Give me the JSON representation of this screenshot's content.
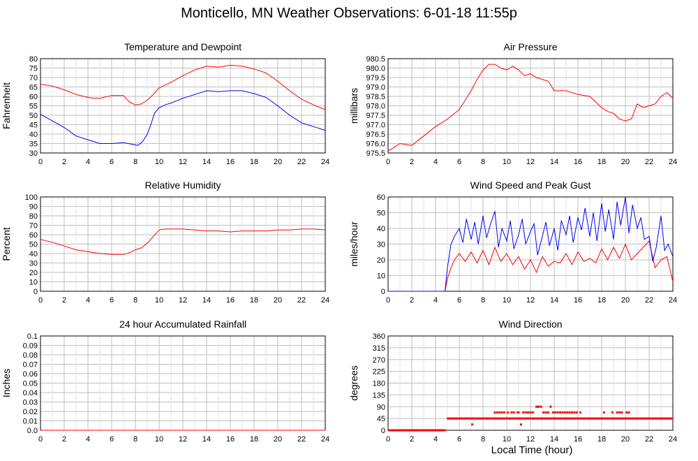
{
  "page": {
    "title": "Monticello, MN Weather Observations: 6-01-18 11:55p",
    "xlabel": "Local Time (hour)"
  },
  "colors": {
    "red": "#ff0000",
    "blue": "#0000ff",
    "grid": "#bfbfbf",
    "axis": "#000000"
  },
  "chart_data": [
    {
      "type": "line",
      "title": "Temperature and Dewpoint",
      "ylabel": "Fahrenheit",
      "xlim": [
        0,
        24
      ],
      "ylim": [
        30,
        80
      ],
      "xticks": [
        0,
        2,
        4,
        6,
        8,
        10,
        12,
        14,
        16,
        18,
        20,
        22,
        24
      ],
      "yticks": [
        30,
        35,
        40,
        45,
        50,
        55,
        60,
        65,
        70,
        75,
        80
      ],
      "ytick_labels": [
        "30",
        "35",
        "40",
        "45",
        "50",
        "55",
        "60",
        "65",
        "70",
        "75",
        "80"
      ],
      "series": [
        {
          "color": "#ff0000",
          "x": [
            0,
            1,
            2,
            3,
            4,
            4.5,
            5,
            6,
            7,
            7.5,
            8,
            8.5,
            9,
            9.5,
            10,
            10.5,
            11,
            12,
            13,
            14,
            15,
            16,
            17,
            18,
            19,
            20,
            21,
            22,
            23,
            24
          ],
          "y": [
            66.5,
            65.5,
            63.5,
            61,
            59.5,
            59,
            59,
            60.5,
            60.5,
            57,
            55.5,
            56,
            58,
            61,
            64.5,
            66,
            67.5,
            71,
            74,
            76,
            75.5,
            76.5,
            76,
            74.5,
            72.5,
            68,
            63,
            58.5,
            55.5,
            53
          ]
        },
        {
          "color": "#0000ff",
          "x": [
            0,
            1,
            2,
            3,
            4,
            5,
            6,
            7,
            7.8,
            8.2,
            8.6,
            9,
            9.3,
            9.6,
            10,
            10.5,
            11,
            12,
            13,
            14,
            15,
            16,
            17,
            18,
            19,
            20,
            21,
            22,
            23,
            24
          ],
          "y": [
            50.5,
            47,
            43.5,
            39,
            37,
            35,
            35,
            35.5,
            34.5,
            34,
            36,
            40,
            45,
            51,
            54,
            55.5,
            56.5,
            59,
            61,
            63,
            62.5,
            63,
            63,
            61.5,
            59.5,
            55,
            50,
            46,
            44,
            42
          ]
        }
      ]
    },
    {
      "type": "line",
      "title": "Air Pressure",
      "ylabel": "millibars",
      "xlim": [
        0,
        24
      ],
      "ylim": [
        975.5,
        980.5
      ],
      "xticks": [
        0,
        2,
        4,
        6,
        8,
        10,
        12,
        14,
        16,
        18,
        20,
        22,
        24
      ],
      "yticks": [
        975.5,
        976,
        976.5,
        977,
        977.5,
        978,
        978.5,
        979,
        979.5,
        980,
        980.5
      ],
      "ytick_labels": [
        "975.5",
        "976.0",
        "976.5",
        "977.0",
        "977.5",
        "978.0",
        "978.5",
        "979.0",
        "979.5",
        "980.0",
        "980.5"
      ],
      "series": [
        {
          "color": "#ff0000",
          "x": [
            0,
            0.5,
            1,
            2,
            3,
            4,
            5,
            6,
            6.5,
            7,
            7.5,
            8,
            8.5,
            9,
            9.5,
            10,
            10.5,
            11,
            11.5,
            12,
            12.5,
            13,
            13.5,
            14,
            15,
            16,
            17,
            18,
            18.5,
            19,
            19.5,
            20,
            20.5,
            21,
            21.5,
            22,
            22.5,
            23,
            23.5,
            24
          ],
          "y": [
            975.6,
            975.8,
            976,
            975.9,
            976.4,
            976.9,
            977.3,
            977.8,
            978.3,
            978.8,
            979.4,
            979.9,
            980.2,
            980.2,
            980,
            979.9,
            980.1,
            979.9,
            979.6,
            979.7,
            979.5,
            979.4,
            979.3,
            978.8,
            978.8,
            978.6,
            978.5,
            977.9,
            977.7,
            977.6,
            977.3,
            977.2,
            977.3,
            978.1,
            977.9,
            978,
            978.1,
            978.5,
            978.7,
            978.4
          ]
        }
      ]
    },
    {
      "type": "line",
      "title": "Relative Humidity",
      "ylabel": "Percent",
      "xlim": [
        0,
        24
      ],
      "ylim": [
        0,
        100
      ],
      "xticks": [
        0,
        2,
        4,
        6,
        8,
        10,
        12,
        14,
        16,
        18,
        20,
        22,
        24
      ],
      "yticks": [
        0,
        10,
        20,
        30,
        40,
        50,
        60,
        70,
        80,
        90,
        100
      ],
      "ytick_labels": [
        "0",
        "10",
        "20",
        "30",
        "40",
        "50",
        "60",
        "70",
        "80",
        "90",
        "100"
      ],
      "series": [
        {
          "color": "#ff0000",
          "x": [
            0,
            1,
            2,
            3,
            4,
            5,
            6,
            7,
            7.5,
            8,
            8.5,
            9,
            9.5,
            10,
            10.5,
            11,
            12,
            13,
            14,
            15,
            16,
            17,
            18,
            19,
            20,
            21,
            22,
            23,
            24
          ],
          "y": [
            55,
            52,
            48,
            44,
            42,
            40,
            39,
            39,
            41,
            44,
            46,
            51,
            58,
            65,
            66,
            66,
            66,
            65,
            64,
            64,
            63,
            64,
            64,
            64,
            65,
            65,
            66,
            66,
            65
          ]
        }
      ]
    },
    {
      "type": "line",
      "title": "Wind Speed and Peak Gust",
      "ylabel": "miles/hour",
      "xlim": [
        0,
        24
      ],
      "ylim": [
        0,
        60
      ],
      "xticks": [
        0,
        2,
        4,
        6,
        8,
        10,
        12,
        14,
        16,
        18,
        20,
        22,
        24
      ],
      "yticks": [
        0,
        10,
        20,
        30,
        40,
        50,
        60
      ],
      "ytick_labels": [
        "0",
        "10",
        "20",
        "30",
        "40",
        "50",
        "60"
      ],
      "series": [
        {
          "color": "#ff0000",
          "x": [
            0,
            4.8,
            5,
            5.3,
            5.6,
            6,
            6.5,
            7,
            7.5,
            8,
            8.5,
            9,
            9.5,
            10,
            10.5,
            11,
            11.5,
            12,
            12.5,
            13,
            13.5,
            14,
            14.5,
            15,
            15.5,
            16,
            16.5,
            17,
            17.5,
            18,
            18.5,
            19,
            19.5,
            20,
            20.5,
            21,
            21.5,
            22,
            22.5,
            23,
            23.5,
            24
          ],
          "y": [
            0,
            0,
            8,
            15,
            20,
            24,
            19,
            25,
            18,
            26,
            17,
            28,
            19,
            24,
            17,
            22,
            14,
            20,
            12,
            22,
            16,
            19,
            18,
            24,
            17,
            25,
            19,
            21,
            18,
            27,
            20,
            28,
            21,
            30,
            20,
            24,
            28,
            32,
            15,
            20,
            22,
            6
          ]
        },
        {
          "color": "#0000ff",
          "x": [
            0,
            4.8,
            5,
            5.3,
            5.6,
            6,
            6.3,
            6.6,
            7,
            7.3,
            7.6,
            8,
            8.3,
            8.6,
            9,
            9.3,
            9.6,
            10,
            10.3,
            10.6,
            11,
            11.3,
            11.6,
            12,
            12.3,
            12.6,
            13,
            13.3,
            13.6,
            14,
            14.3,
            14.6,
            15,
            15.3,
            15.6,
            16,
            16.3,
            16.6,
            17,
            17.3,
            17.6,
            18,
            18.3,
            18.6,
            19,
            19.3,
            19.6,
            20,
            20.3,
            20.6,
            21,
            21.3,
            21.6,
            22,
            22.3,
            22.6,
            23,
            23.3,
            23.6,
            24
          ],
          "y": [
            0,
            0,
            15,
            30,
            35,
            40,
            31,
            46,
            33,
            44,
            30,
            48,
            34,
            42,
            51,
            28,
            40,
            32,
            45,
            27,
            36,
            46,
            30,
            38,
            43,
            23,
            35,
            44,
            29,
            40,
            26,
            45,
            36,
            48,
            31,
            47,
            39,
            53,
            35,
            50,
            32,
            56,
            38,
            52,
            33,
            57,
            42,
            60,
            37,
            55,
            40,
            47,
            33,
            35,
            19,
            28,
            48,
            26,
            30,
            22
          ]
        }
      ]
    },
    {
      "type": "line",
      "title": "24 hour Accumulated Rainfall",
      "ylabel": "Inches",
      "xlim": [
        0,
        24
      ],
      "ylim": [
        0,
        0.1
      ],
      "xticks": [
        0,
        2,
        4,
        6,
        8,
        10,
        12,
        14,
        16,
        18,
        20,
        22,
        24
      ],
      "yticks": [
        0,
        0.01,
        0.02,
        0.03,
        0.04,
        0.05,
        0.06,
        0.07,
        0.08,
        0.09,
        0.1
      ],
      "ytick_labels": [
        "0.0",
        "0.01",
        "0.02",
        "0.03",
        "0.04",
        "0.05",
        "0.06",
        "0.07",
        "0.08",
        "0.09",
        "0.1"
      ],
      "series": [
        {
          "color": "#ff0000",
          "x": [
            0,
            24
          ],
          "y": [
            0,
            0
          ]
        }
      ]
    },
    {
      "type": "scatter",
      "title": "Wind Direction",
      "ylabel": "degrees",
      "xlim": [
        0,
        24
      ],
      "ylim": [
        0,
        360
      ],
      "xticks": [
        0,
        2,
        4,
        6,
        8,
        10,
        12,
        14,
        16,
        18,
        20,
        22,
        24
      ],
      "yticks": [
        0,
        45,
        90,
        135,
        180,
        225,
        270,
        315,
        360
      ],
      "ytick_labels": [
        "0",
        "45",
        "90",
        "135",
        "180",
        "225",
        "270",
        "315",
        "360"
      ],
      "segments": [
        {
          "color": "#ff0000",
          "x": [
            0,
            4.85
          ],
          "y": 0
        },
        {
          "color": "#ff0000",
          "x": [
            4.95,
            24
          ],
          "y": 45
        }
      ],
      "series": [
        {
          "color": "#ff0000",
          "x": [
            7.1,
            9.0,
            9.2,
            9.4,
            9.6,
            9.8,
            10.1,
            10.4,
            10.6,
            10.9,
            11.2,
            11.4,
            11.6,
            11.8,
            12.0,
            12.2,
            12.5,
            12.7,
            12.9,
            13.1,
            13.3,
            13.5,
            13.7,
            13.9,
            14.1,
            14.3,
            14.5,
            14.7,
            14.9,
            15.1,
            15.3,
            15.5,
            15.7,
            15.9,
            16.2,
            18.2,
            18.9,
            19.3,
            19.5,
            19.7,
            20.1,
            20.3,
            11.0,
            12.6
          ],
          "y": [
            22,
            68,
            68,
            68,
            68,
            68,
            68,
            68,
            68,
            68,
            22,
            68,
            68,
            68,
            68,
            68,
            90,
            90,
            90,
            68,
            68,
            68,
            90,
            68,
            68,
            68,
            68,
            68,
            68,
            68,
            68,
            68,
            68,
            68,
            68,
            68,
            68,
            68,
            68,
            68,
            68,
            68,
            68,
            90
          ]
        }
      ]
    }
  ]
}
